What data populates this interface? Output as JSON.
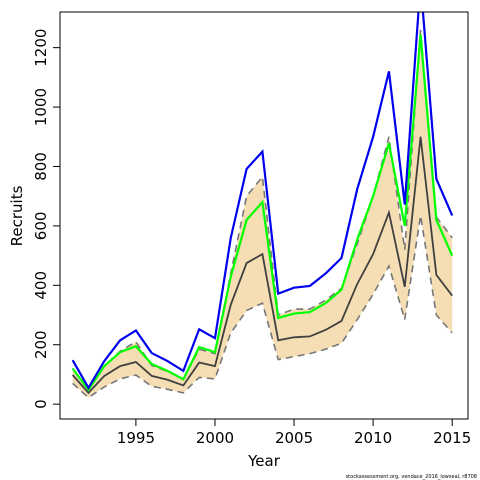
{
  "chart_data": {
    "type": "line",
    "xlabel": "Year",
    "ylabel": "Recruits",
    "xlim": [
      1990.2,
      2016.0
    ],
    "ylim": [
      -50,
      1320
    ],
    "x_ticks": [
      1995,
      2000,
      2005,
      2010,
      2015
    ],
    "y_ticks": [
      0,
      200,
      400,
      600,
      800,
      1000,
      1200
    ],
    "grid": false,
    "legend": "none",
    "footnote": "stockassessment.org, vendace_2016_lowseal, r8708",
    "x": [
      1991,
      1992,
      1993,
      1994,
      1995,
      1996,
      1997,
      1998,
      1999,
      2000,
      2001,
      2002,
      2003,
      2004,
      2005,
      2006,
      2007,
      2008,
      2009,
      2010,
      2011,
      2012,
      2013,
      2014,
      2015
    ],
    "series": [
      {
        "role": "band-upper",
        "color": "#777777",
        "dashed": true,
        "values": [
          120,
          48,
          128,
          178,
          210,
          130,
          110,
          85,
          185,
          170,
          440,
          700,
          765,
          300,
          320,
          320,
          350,
          390,
          540,
          700,
          900,
          520,
          1260,
          630,
          560
        ]
      },
      {
        "role": "band-lower",
        "color": "#777777",
        "dashed": true,
        "values": [
          70,
          22,
          58,
          85,
          98,
          60,
          50,
          38,
          90,
          85,
          240,
          315,
          340,
          150,
          160,
          170,
          185,
          205,
          285,
          370,
          465,
          285,
          635,
          300,
          240
        ]
      },
      {
        "role": "estimate",
        "color": "#404040",
        "dashed": false,
        "values": [
          98,
          38,
          95,
          128,
          142,
          95,
          82,
          63,
          140,
          128,
          335,
          475,
          505,
          215,
          225,
          228,
          250,
          280,
          405,
          505,
          645,
          395,
          900,
          435,
          365
        ]
      },
      {
        "role": "upper-line",
        "color": "#00ff00",
        "dashed": false,
        "values": [
          120,
          48,
          128,
          175,
          195,
          135,
          112,
          84,
          192,
          175,
          430,
          620,
          680,
          290,
          305,
          310,
          340,
          385,
          555,
          700,
          878,
          600,
          1245,
          620,
          500
        ]
      },
      {
        "role": "outer-line",
        "color": "#0000ee",
        "dashed": false,
        "values": [
          148,
          55,
          145,
          215,
          248,
          172,
          145,
          112,
          252,
          222,
          560,
          792,
          850,
          372,
          392,
          398,
          440,
          492,
          725,
          900,
          1120,
          672,
          1420,
          758,
          635
        ]
      }
    ],
    "band_fill": "#f5deb3"
  }
}
